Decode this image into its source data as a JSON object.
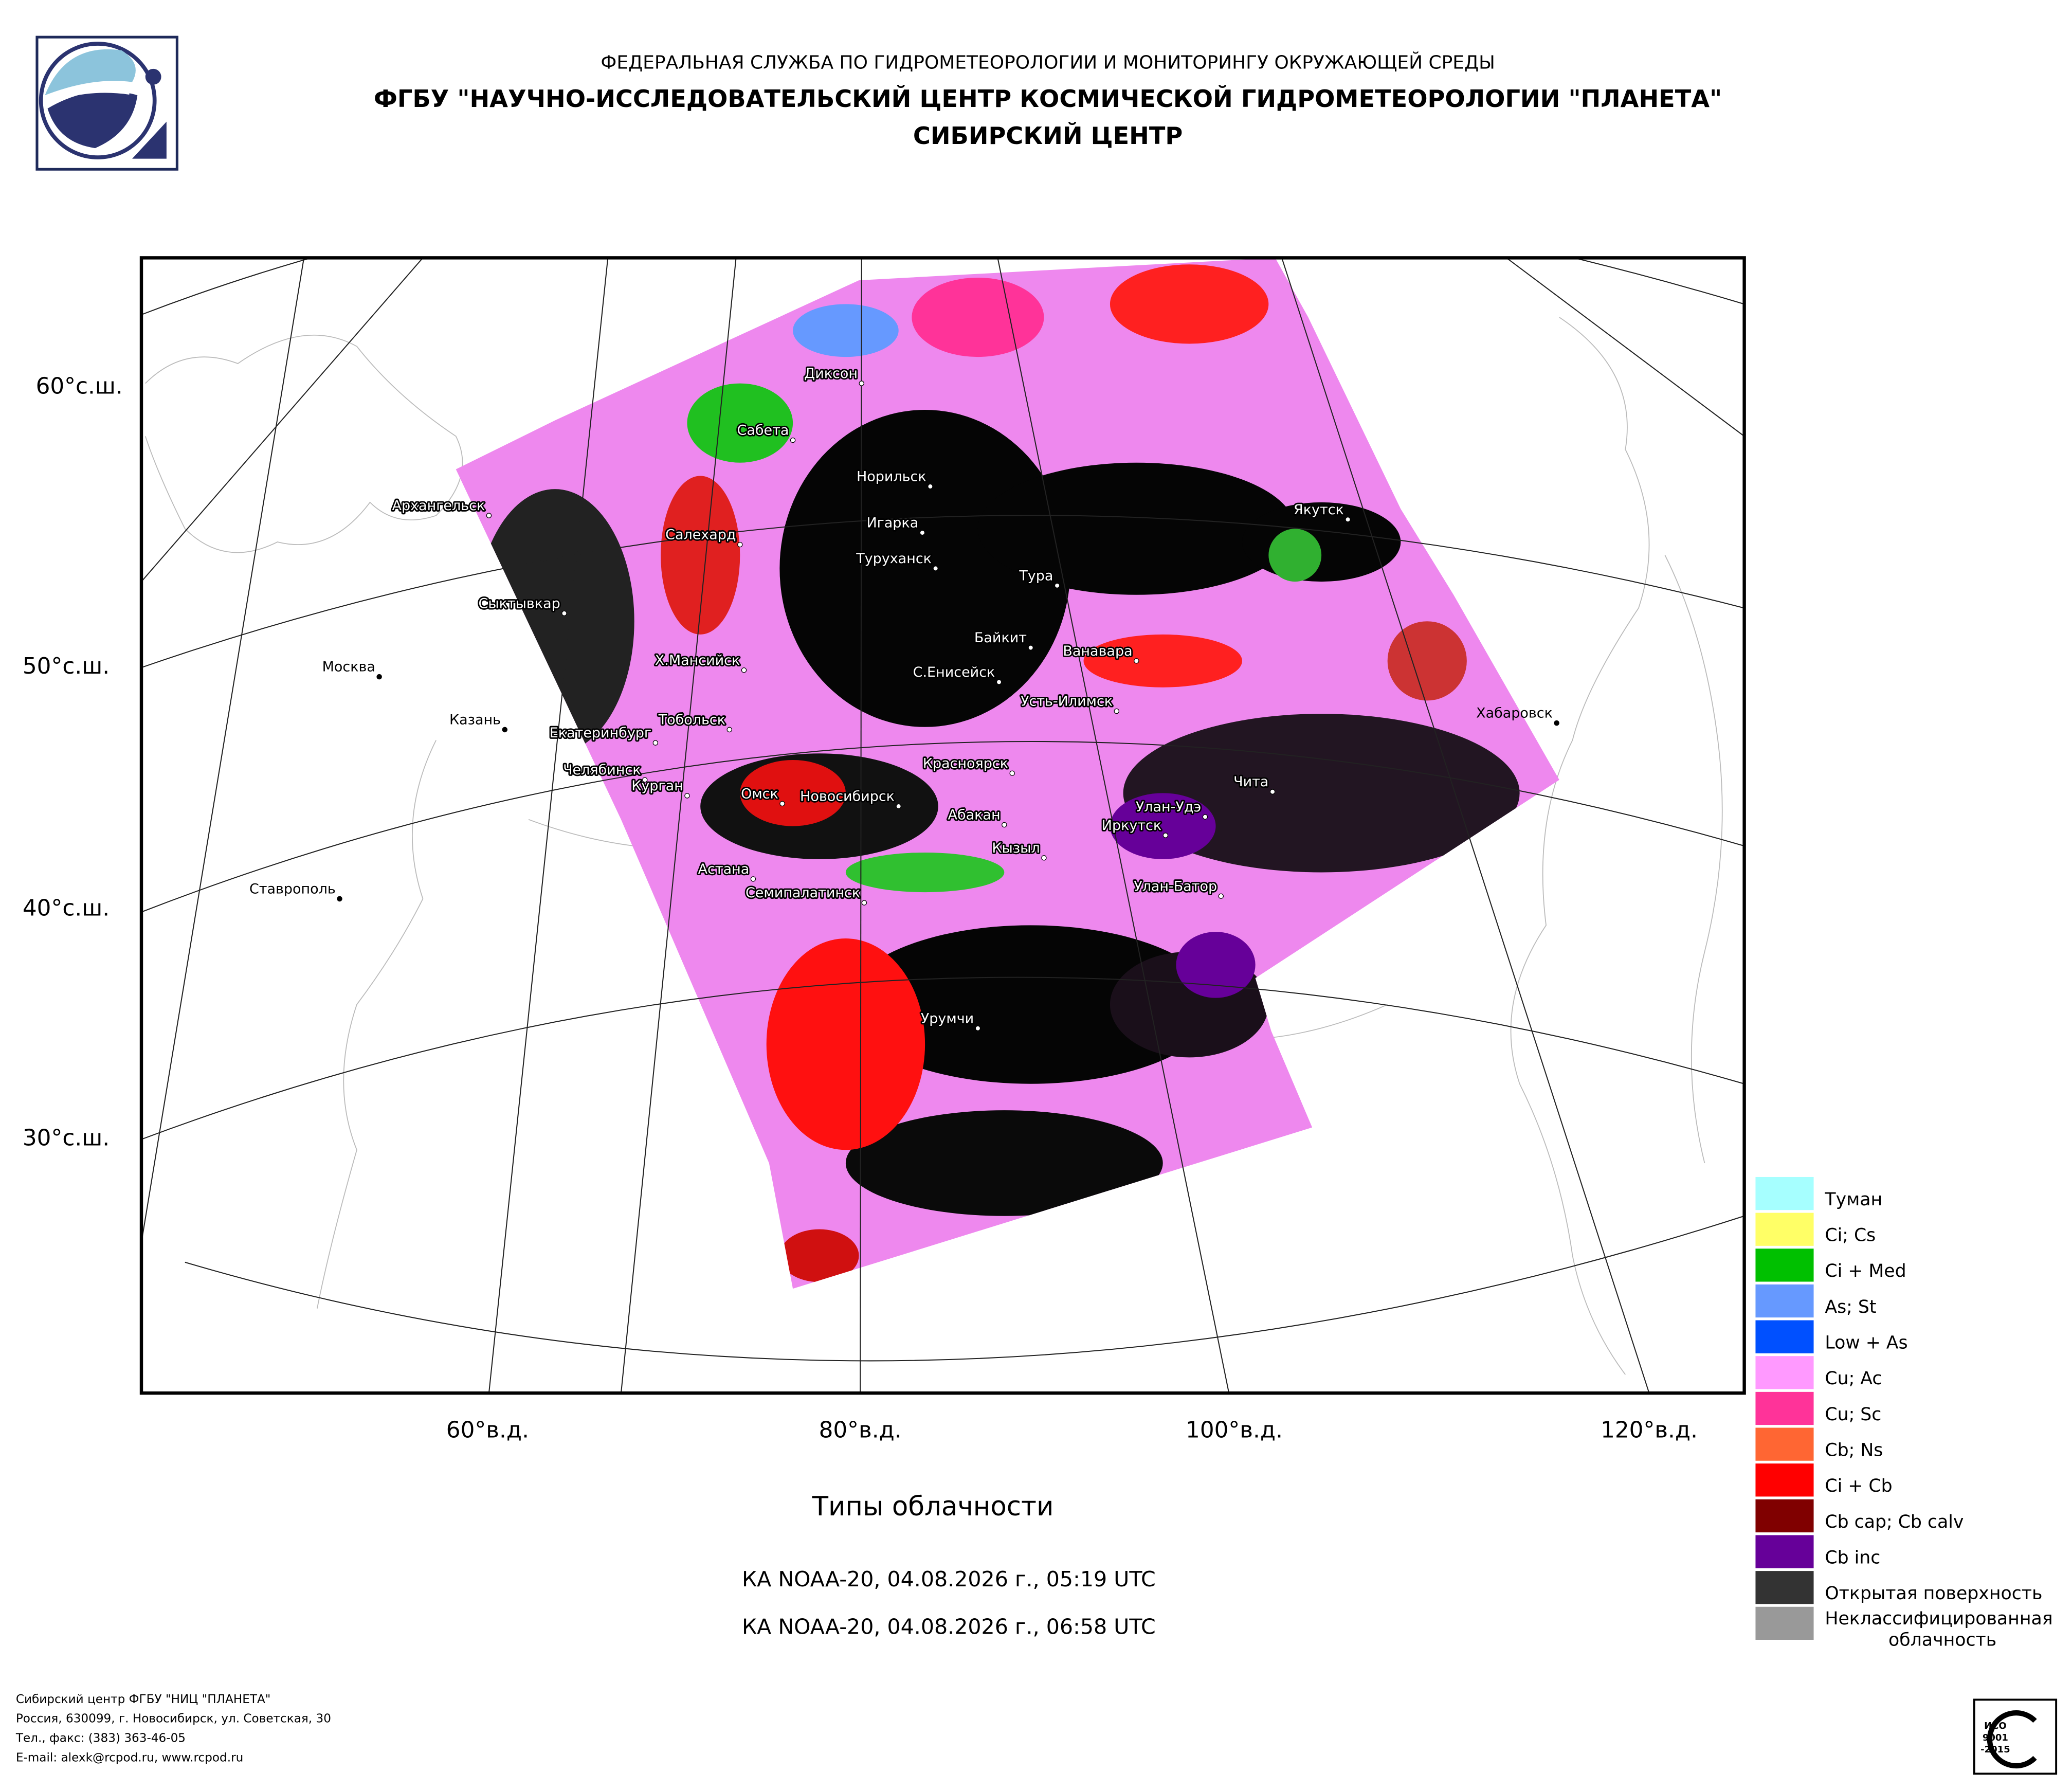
{
  "header": {
    "line1": "ФЕДЕРАЛЬНАЯ СЛУЖБА ПО ГИДРОМЕТЕОРОЛОГИИ И МОНИТОРИНГУ ОКРУЖАЮЩЕЙ СРЕДЫ",
    "line2": "ФГБУ \"НАУЧНО-ИССЛЕДОВАТЕЛЬСКИЙ ЦЕНТР КОСМИЧЕСКОЙ ГИДРОМЕТЕОРОЛОГИИ \"ПЛАНЕТА\"",
    "line3": "СИБИРСКИЙ ЦЕНТР"
  },
  "map": {
    "lat_labels": [
      "60°с.ш.",
      "50°с.ш.",
      "40°с.ш.",
      "30°с.ш."
    ],
    "lon_labels": [
      "60°в.д.",
      "80°в.д.",
      "100°в.д.",
      "120°в.д."
    ],
    "cities": [
      "Диксон",
      "Сабета",
      "Норильск",
      "Архангельск",
      "Игарка",
      "Салехард",
      "Туруханск",
      "Тура",
      "Якутск",
      "Сыктывкар",
      "Байкит",
      "Ванавара",
      "Москва",
      "Х.Мансийск",
      "С.Енисейск",
      "Усть-Илимск",
      "Хабаровск",
      "Казань",
      "Тобольск",
      "Екатеринбург",
      "Красноярск",
      "Челябинск",
      "Чита",
      "Курган",
      "Омск",
      "Новосибирск",
      "Улан-Удэ",
      "Абакан",
      "Иркутск",
      "Кызыл",
      "Астана",
      "Улан-Батор",
      "Ставрополь",
      "Семипалатинск",
      "Урумчи"
    ]
  },
  "title": "Типы облачности",
  "passes": [
    "КА NOAA-20, 04.08.2026 г., 05:19 UTC",
    "КА NOAA-20, 04.08.2026 г., 06:58 UTC"
  ],
  "legend": [
    {
      "label": "Туман",
      "color": "#a6ffff"
    },
    {
      "label": "Ci; Cs",
      "color": "#ffff66"
    },
    {
      "label": "Ci + Med",
      "color": "#00c000"
    },
    {
      "label": "As; St",
      "color": "#6699ff"
    },
    {
      "label": "Low + As",
      "color": "#0050ff"
    },
    {
      "label": "Cu; Ac",
      "color": "#ff99ff"
    },
    {
      "label": "Cu; Sc",
      "color": "#ff3399"
    },
    {
      "label": "Cb; Ns",
      "color": "#ff6633"
    },
    {
      "label": "Ci + Cb",
      "color": "#ff0000"
    },
    {
      "label": "Cb cap; Cb calv",
      "color": "#800000"
    },
    {
      "label": "Cb inc",
      "color": "#660099"
    },
    {
      "label": "Открытая поверхность",
      "color": "#333333"
    },
    {
      "label": "Неклассифицированная облачность",
      "color": "#999999"
    }
  ],
  "footer": [
    "Сибирский центр ФГБУ \"НИЦ \"ПЛАНЕТА\"",
    "Россия, 630099, г. Новосибирск, ул. Советская, 30",
    "Тел., факс: (383) 363-46-05",
    "E-mail: alexk@rcpod.ru, www.rcpod.ru"
  ],
  "iso": {
    "line1": "ИСО",
    "line2": "9001",
    "line3": "-2015"
  }
}
